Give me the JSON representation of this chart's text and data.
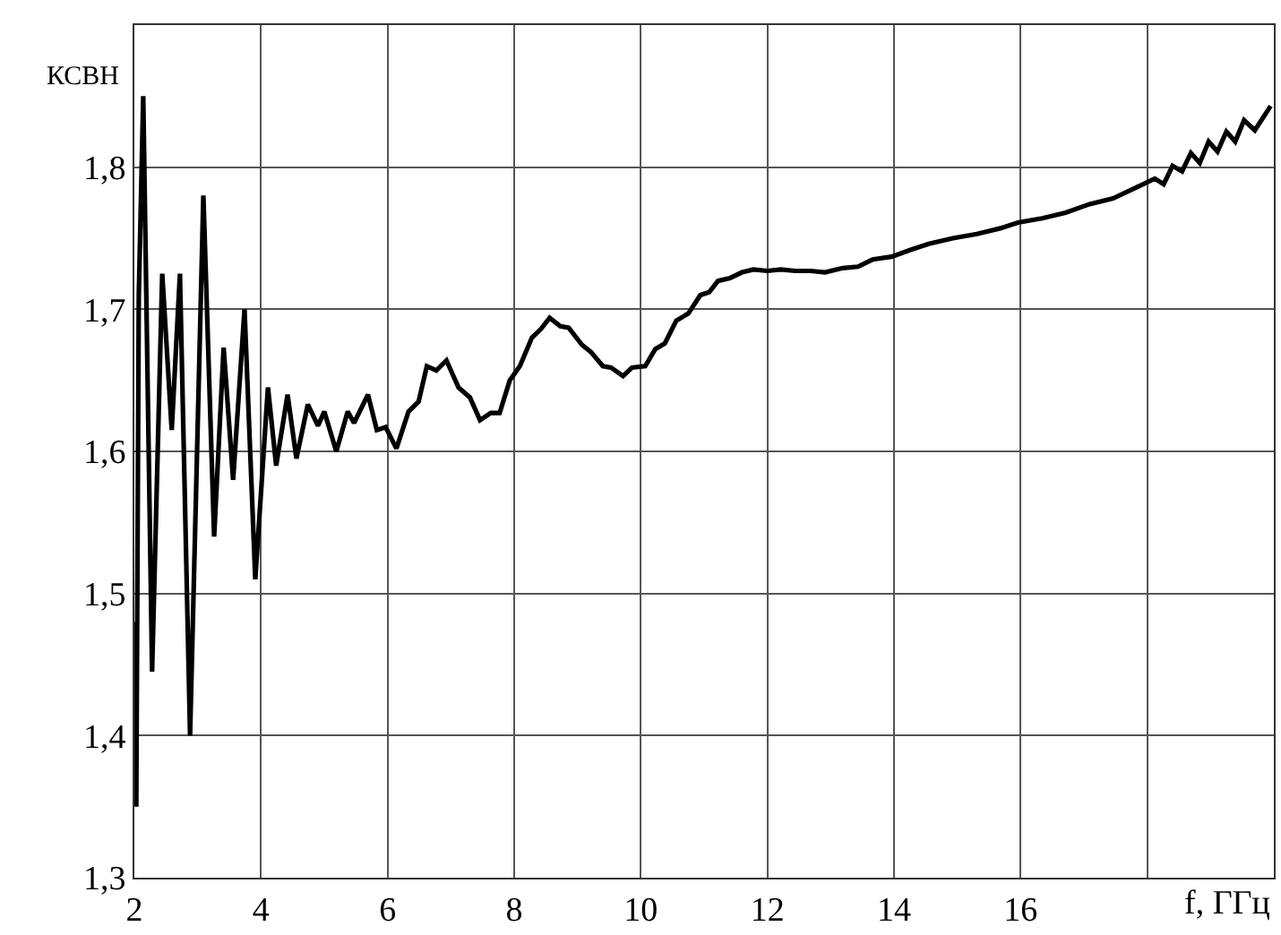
{
  "chart_data": {
    "type": "line",
    "xlabel": "f, ГГц",
    "ylabel": "КСВН",
    "xlim": [
      2,
      20
    ],
    "ylim": [
      1.3,
      1.9
    ],
    "xticks": [
      2,
      4,
      6,
      8,
      10,
      12,
      14,
      16,
      {
        "value": 18,
        "label": null
      }
    ],
    "yticks": [
      {
        "value": 1.3,
        "label": "1,3"
      },
      {
        "value": 1.4,
        "label": "1,4"
      },
      {
        "value": 1.5,
        "label": "1,5"
      },
      {
        "value": 1.6,
        "label": "1,6"
      },
      {
        "value": 1.7,
        "label": "1,7"
      },
      {
        "value": 1.8,
        "label": "1,8"
      }
    ],
    "grid": true,
    "marker": "none",
    "line_style": "solid",
    "series": [
      {
        "color": "#000000",
        "x": [
          2.0,
          2.03,
          2.07,
          2.14,
          2.28,
          2.44,
          2.59,
          2.72,
          2.88,
          3.09,
          3.26,
          3.41,
          3.56,
          3.74,
          3.91,
          4.11,
          4.24,
          4.42,
          4.56,
          4.74,
          4.9,
          5.0,
          5.19,
          5.37,
          5.47,
          5.69,
          5.83,
          5.97,
          6.14,
          6.33,
          6.49,
          6.62,
          6.77,
          6.93,
          7.12,
          7.3,
          7.46,
          7.63,
          7.77,
          7.93,
          8.09,
          8.28,
          8.42,
          8.56,
          8.73,
          8.86,
          9.07,
          9.21,
          9.4,
          9.53,
          9.72,
          9.86,
          10.07,
          10.23,
          10.38,
          10.56,
          10.75,
          10.94,
          11.08,
          11.22,
          11.41,
          11.6,
          11.78,
          12.0,
          12.21,
          12.44,
          12.68,
          12.91,
          13.19,
          13.43,
          13.66,
          13.96,
          14.27,
          14.55,
          14.93,
          15.31,
          15.68,
          15.96,
          16.34,
          16.71,
          17.09,
          17.46,
          17.84,
          18.12,
          18.26,
          18.4,
          18.55,
          18.69,
          18.83,
          18.97,
          19.11,
          19.25,
          19.39,
          19.53,
          19.7,
          19.95
        ],
        "values": [
          1.48,
          1.35,
          1.71,
          1.85,
          1.445,
          1.725,
          1.615,
          1.725,
          1.4,
          1.78,
          1.54,
          1.673,
          1.58,
          1.7,
          1.51,
          1.645,
          1.59,
          1.64,
          1.595,
          1.633,
          1.618,
          1.628,
          1.6,
          1.628,
          1.62,
          1.64,
          1.615,
          1.617,
          1.602,
          1.628,
          1.635,
          1.66,
          1.657,
          1.664,
          1.645,
          1.638,
          1.622,
          1.627,
          1.627,
          1.65,
          1.66,
          1.68,
          1.686,
          1.694,
          1.688,
          1.687,
          1.675,
          1.67,
          1.66,
          1.659,
          1.653,
          1.659,
          1.66,
          1.672,
          1.676,
          1.692,
          1.697,
          1.71,
          1.712,
          1.72,
          1.722,
          1.726,
          1.728,
          1.727,
          1.728,
          1.727,
          1.727,
          1.726,
          1.729,
          1.73,
          1.735,
          1.737,
          1.742,
          1.746,
          1.75,
          1.753,
          1.757,
          1.761,
          1.764,
          1.768,
          1.774,
          1.778,
          1.786,
          1.792,
          1.788,
          1.801,
          1.797,
          1.81,
          1.803,
          1.818,
          1.811,
          1.825,
          1.818,
          1.833,
          1.826,
          1.843
        ]
      }
    ]
  }
}
